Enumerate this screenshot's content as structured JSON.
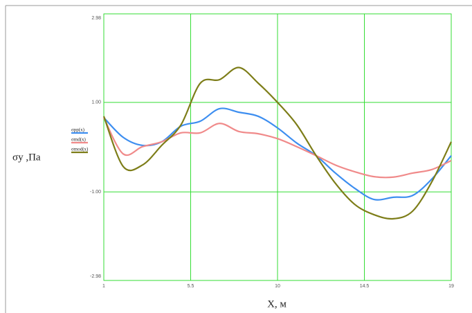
{
  "chart_data": {
    "type": "line",
    "y_label": "σy ,Па",
    "x_label": "X, м",
    "x": [
      1,
      2,
      3,
      4,
      5,
      6,
      7,
      8,
      9,
      10,
      11,
      12,
      13,
      14,
      15,
      16,
      17,
      18,
      19
    ],
    "series": [
      {
        "name": "σpp(x)",
        "color": "#3d8ef0",
        "values": [
          0.66,
          0.22,
          0.04,
          0.12,
          0.47,
          0.58,
          0.86,
          0.78,
          0.69,
          0.43,
          0.09,
          -0.19,
          -0.58,
          -0.92,
          -1.17,
          -1.12,
          -1.08,
          -0.71,
          -0.19
        ]
      },
      {
        "name": "σmd(x)",
        "color": "#f08a8a",
        "values": [
          0.66,
          -0.15,
          0.01,
          0.12,
          0.32,
          0.32,
          0.53,
          0.35,
          0.3,
          0.19,
          0.01,
          -0.19,
          -0.4,
          -0.55,
          -0.66,
          -0.67,
          -0.58,
          -0.5,
          -0.3
        ]
      },
      {
        "name": "σmod(x)",
        "color": "#7d7d18",
        "values": [
          0.69,
          -0.43,
          -0.4,
          0.04,
          0.5,
          1.43,
          1.51,
          1.78,
          1.43,
          1.0,
          0.5,
          -0.19,
          -0.81,
          -1.28,
          -1.51,
          -1.6,
          -1.43,
          -0.77,
          0.12
        ]
      }
    ],
    "xlim": [
      1,
      19
    ],
    "xticks": [
      1,
      5.5,
      10,
      14.5,
      19
    ],
    "ylim": [
      -2.98,
      2.98
    ],
    "yticks": [
      -2.98,
      {
        "value": -1,
        "label": "-1.00"
      },
      {
        "value": 1,
        "label": "1.00"
      },
      2.98
    ],
    "grid": true,
    "grid_color": "#33dd33"
  }
}
